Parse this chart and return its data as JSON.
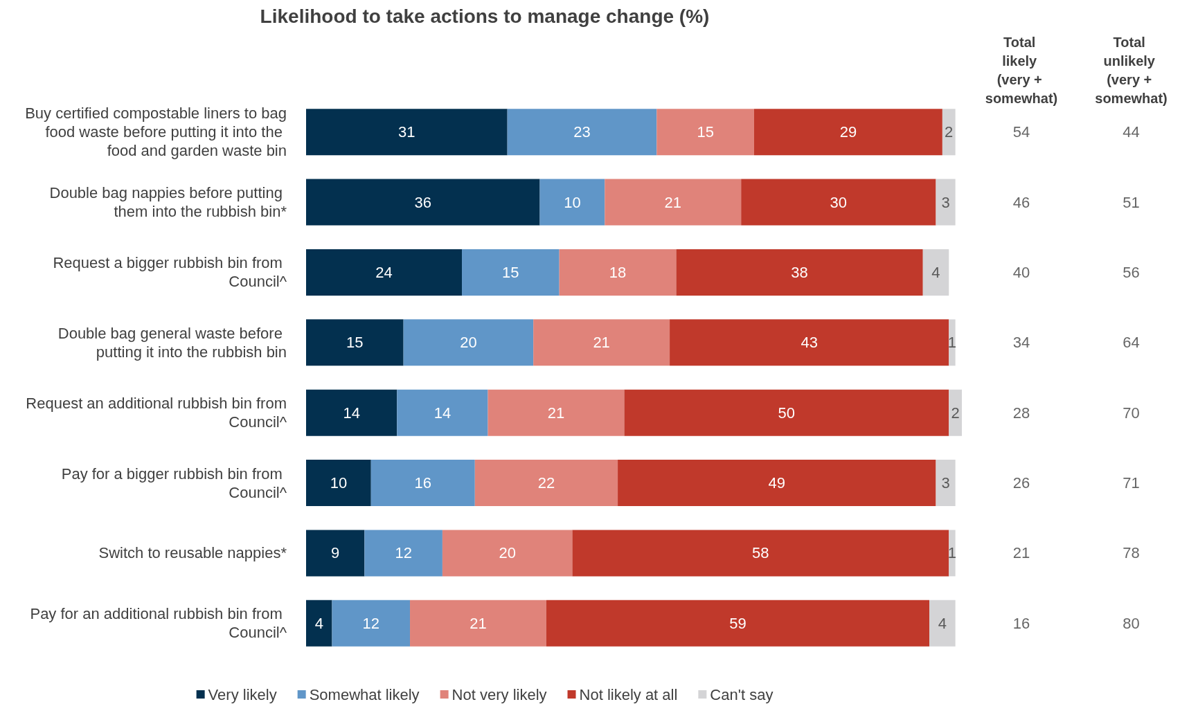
{
  "chart_data": [
    {
      "type": "bar",
      "title": "Likelihood to take actions to manage change (%)",
      "orientation": "horizontal",
      "stacked": true,
      "data_labels": true,
      "grid": false,
      "legend": "bottom",
      "tick_labels": "y",
      "xlim": [
        0,
        101
      ],
      "categories": [
        "Buy certified compostable liners to bag food waste before putting it into the food and garden waste bin",
        "Double bag nappies before putting them into the rubbish bin*",
        "Request a bigger rubbish bin from Council^",
        "Double bag general waste before putting it into the rubbish bin",
        "Request an additional rubbish bin from Council^",
        "Pay for a bigger rubbish bin from Council^",
        "Switch to reusable nappies*",
        "Pay for an additional rubbish bin from Council^"
      ],
      "series": [
        {
          "name": "Very likely",
          "color": "#03304f",
          "values": [
            31,
            36,
            24,
            15,
            14,
            10,
            9,
            4
          ]
        },
        {
          "name": "Somewhat likely",
          "color": "#6096c8",
          "values": [
            23,
            10,
            15,
            20,
            14,
            16,
            12,
            12
          ]
        },
        {
          "name": "Not very likely",
          "color": "#e0837a",
          "values": [
            15,
            21,
            18,
            21,
            21,
            22,
            20,
            21
          ]
        },
        {
          "name": "Not likely at all",
          "color": "#c0392b",
          "values": [
            29,
            30,
            38,
            43,
            50,
            49,
            58,
            59
          ]
        },
        {
          "name": "Can't say",
          "color": "#d4d4d6",
          "values": [
            2,
            3,
            4,
            1,
            2,
            3,
            1,
            4
          ]
        }
      ]
    },
    {
      "type": "other",
      "title": "Total likely (very + somewhat)",
      "categories": [
        null,
        null,
        null,
        null,
        null,
        null,
        null,
        null
      ],
      "values": [
        54,
        46,
        40,
        34,
        28,
        26,
        21,
        16
      ],
      "data_labels": true
    },
    {
      "type": "other",
      "title": "Total unlikely (very + somewhat)",
      "categories": [
        null,
        null,
        null,
        null,
        null,
        null,
        null,
        null
      ],
      "values": [
        44,
        51,
        56,
        64,
        70,
        71,
        78,
        80
      ],
      "data_labels": true
    }
  ]
}
